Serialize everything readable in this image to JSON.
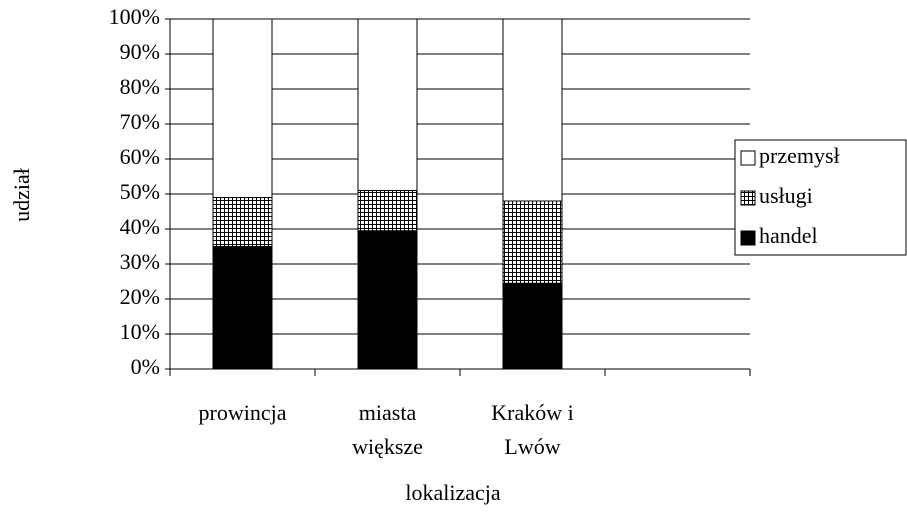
{
  "chart_data": {
    "type": "stacked-bar",
    "y_label": "udział",
    "x_label": "lokalizacja",
    "categories": [
      "prowincja",
      "miasta większe",
      "Kraków i Lwów",
      null
    ],
    "series": [
      {
        "name": "handel",
        "color": "#000000",
        "values": [
          35,
          39.5,
          24.5,
          null
        ]
      },
      {
        "name": "usługi",
        "color": "#ffffff",
        "pattern": "grid",
        "values": [
          14,
          11.5,
          23.5,
          null
        ]
      },
      {
        "name": "przemysł",
        "color": "#ffffff",
        "values": [
          51,
          49,
          52,
          null
        ]
      }
    ],
    "ylim": [
      0,
      100
    ],
    "yticks": [
      {
        "value": 0,
        "label": "0%"
      },
      {
        "value": 10,
        "label": "10%"
      },
      {
        "value": 20,
        "label": "20%"
      },
      {
        "value": 30,
        "label": "30%"
      },
      {
        "value": 40,
        "label": "40%"
      },
      {
        "value": 50,
        "label": "50%"
      },
      {
        "value": 60,
        "label": "60%"
      },
      {
        "value": 70,
        "label": "70%"
      },
      {
        "value": 80,
        "label": "80%"
      },
      {
        "value": 90,
        "label": "90%"
      },
      {
        "value": 100,
        "label": "100%"
      }
    ],
    "grid": true,
    "legend": "right"
  }
}
